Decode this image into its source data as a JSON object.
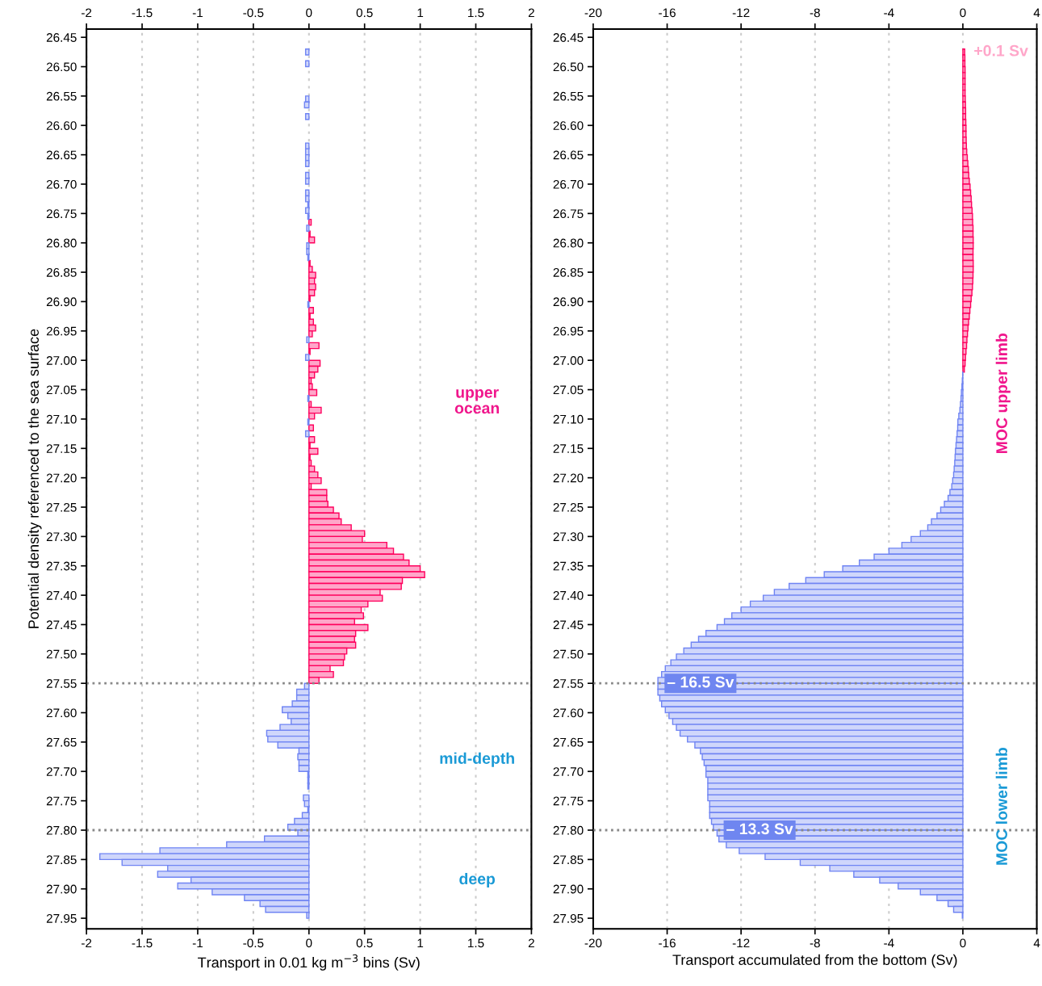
{
  "chart_data": [
    {
      "type": "bar",
      "orientation": "horizontal",
      "xlabel": "Transport in 0.01 kg m$^{−3}$ bins (Sv)",
      "ylabel": "Potential density referenced to the sea surface",
      "x": [
        26.475,
        26.485,
        26.495,
        26.505,
        26.515,
        26.525,
        26.535,
        26.545,
        26.555,
        26.565,
        26.575,
        26.585,
        26.595,
        26.605,
        26.615,
        26.625,
        26.635,
        26.645,
        26.655,
        26.665,
        26.675,
        26.685,
        26.695,
        26.705,
        26.715,
        26.725,
        26.735,
        26.745,
        26.755,
        26.765,
        26.775,
        26.785,
        26.795,
        26.805,
        26.815,
        26.825,
        26.835,
        26.845,
        26.855,
        26.865,
        26.875,
        26.885,
        26.895,
        26.905,
        26.915,
        26.925,
        26.935,
        26.945,
        26.955,
        26.965,
        26.975,
        26.985,
        26.995,
        27.005,
        27.015,
        27.025,
        27.035,
        27.045,
        27.055,
        27.065,
        27.075,
        27.085,
        27.095,
        27.105,
        27.115,
        27.125,
        27.135,
        27.145,
        27.155,
        27.165,
        27.175,
        27.185,
        27.195,
        27.205,
        27.215,
        27.225,
        27.235,
        27.245,
        27.255,
        27.265,
        27.275,
        27.285,
        27.295,
        27.305,
        27.315,
        27.325,
        27.335,
        27.345,
        27.355,
        27.365,
        27.375,
        27.385,
        27.395,
        27.405,
        27.415,
        27.425,
        27.435,
        27.445,
        27.455,
        27.465,
        27.475,
        27.485,
        27.495,
        27.505,
        27.515,
        27.525,
        27.535,
        27.545,
        27.555,
        27.565,
        27.575,
        27.585,
        27.595,
        27.605,
        27.615,
        27.625,
        27.635,
        27.645,
        27.655,
        27.665,
        27.675,
        27.685,
        27.695,
        27.705,
        27.715,
        27.725,
        27.735,
        27.745,
        27.755,
        27.765,
        27.775,
        27.785,
        27.795,
        27.805,
        27.815,
        27.825,
        27.835,
        27.845,
        27.855,
        27.865,
        27.875,
        27.885,
        27.895,
        27.905,
        27.915,
        27.925,
        27.935,
        27.945
      ],
      "series": [
        {
          "color": "#ffa6c9",
          "values": [
            null,
            null,
            null,
            null,
            null,
            null,
            null,
            null,
            null,
            null,
            null,
            null,
            null,
            null,
            null,
            null,
            null,
            null,
            null,
            null,
            null,
            null,
            null,
            null,
            null,
            null,
            null,
            null,
            null,
            0.02,
            null,
            0.01,
            0.05,
            null,
            null,
            null,
            0.01,
            0.03,
            0.06,
            0.05,
            0.06,
            0.05,
            0.01,
            null,
            0.04,
            0.01,
            0.04,
            0.06,
            0.03,
            null,
            0.09,
            0.01,
            null,
            0.1,
            0.08,
            0.05,
            0.02,
            0.03,
            0.07,
            null,
            0.02,
            0.11,
            0.05,
            null,
            0.04,
            null,
            0.05,
            0.01,
            0.08,
            0.01,
            0.02,
            0.05,
            0.08,
            0.11,
            0.02,
            0.16,
            0.16,
            0.17,
            0.22,
            0.27,
            0.29,
            0.38,
            0.5,
            0.48,
            0.7,
            0.76,
            0.85,
            0.9,
            1.0,
            1.04,
            0.84,
            0.83,
            0.64,
            0.66,
            0.53,
            0.47,
            0.49,
            0.41,
            0.53,
            0.42,
            0.41,
            0.42,
            0.34,
            0.32,
            0.31,
            0.19,
            0.22,
            0.09,
            null,
            null,
            null,
            null,
            null,
            null,
            null,
            null,
            null,
            null,
            null,
            null,
            null,
            null,
            null,
            null,
            null,
            null,
            null,
            null,
            null,
            null,
            null,
            null,
            null,
            null,
            null,
            null,
            null,
            null,
            null,
            null,
            null,
            null,
            null,
            null,
            null,
            null,
            null,
            null
          ]
        },
        {
          "color": "#cfd6fb",
          "values": [
            -0.03,
            null,
            -0.03,
            null,
            null,
            null,
            null,
            null,
            -0.03,
            -0.04,
            null,
            -0.03,
            null,
            null,
            null,
            null,
            -0.03,
            -0.03,
            -0.03,
            -0.03,
            null,
            -0.03,
            -0.03,
            null,
            -0.03,
            -0.03,
            -0.01,
            -0.03,
            -0.01,
            null,
            -0.02,
            null,
            null,
            -0.02,
            -0.02,
            -0.01,
            null,
            null,
            null,
            null,
            null,
            null,
            null,
            -0.01,
            null,
            null,
            null,
            null,
            null,
            -0.02,
            null,
            null,
            -0.03,
            null,
            null,
            null,
            null,
            null,
            null,
            -0.01,
            null,
            null,
            null,
            -0.01,
            null,
            -0.03,
            null,
            null,
            null,
            null,
            null,
            null,
            null,
            null,
            null,
            null,
            null,
            null,
            null,
            null,
            null,
            null,
            null,
            null,
            null,
            null,
            null,
            null,
            null,
            null,
            null,
            null,
            null,
            null,
            null,
            null,
            null,
            null,
            null,
            null,
            null,
            null,
            null,
            null,
            null,
            null,
            null,
            null,
            -0.04,
            -0.11,
            -0.11,
            -0.15,
            -0.24,
            -0.19,
            -0.16,
            -0.26,
            -0.38,
            -0.37,
            -0.28,
            -0.09,
            -0.1,
            -0.09,
            -0.09,
            -0.01,
            -0.01,
            -0.01,
            null,
            -0.05,
            -0.04,
            -0.01,
            -0.06,
            -0.13,
            -0.19,
            -0.1,
            -0.4,
            -0.74,
            -1.34,
            -1.88,
            -1.68,
            -1.27,
            -1.36,
            -1.06,
            -1.18,
            -0.87,
            -0.58,
            -0.44,
            -0.39,
            -0.02
          ]
        }
      ],
      "xlim": [
        -2,
        2
      ],
      "xticks": [
        -2,
        -1.5,
        -1,
        -0.5,
        0,
        0.5,
        1,
        1.5,
        2
      ],
      "x2lim": [
        -2,
        2
      ],
      "x2ticks": [
        -2,
        -1.5,
        -1,
        -0.5,
        0,
        0.5,
        1,
        1.5,
        2
      ],
      "ylim": [
        27.968,
        26.436
      ],
      "yticks": [
        {
          "value": 26.45,
          "label": "26.45"
        },
        {
          "value": 26.5,
          "label": "26.50"
        },
        {
          "value": 26.55,
          "label": "26.55"
        },
        {
          "value": 26.6,
          "label": "26.60"
        },
        {
          "value": 26.65,
          "label": "26.65"
        },
        {
          "value": 26.7,
          "label": "26.70"
        },
        {
          "value": 26.75,
          "label": "26.75"
        },
        {
          "value": 26.8,
          "label": "26.80"
        },
        {
          "value": 26.85,
          "label": "26.85"
        },
        {
          "value": 26.9,
          "label": "26.90"
        },
        {
          "value": 26.95,
          "label": "26.95"
        },
        {
          "value": 27.0,
          "label": "27.00"
        },
        {
          "value": 27.05,
          "label": "27.05"
        },
        {
          "value": 27.1,
          "label": "27.10"
        },
        {
          "value": 27.15,
          "label": "27.15"
        },
        {
          "value": 27.2,
          "label": "27.20"
        },
        {
          "value": 27.25,
          "label": "27.25"
        },
        {
          "value": 27.3,
          "label": "27.30"
        },
        {
          "value": 27.35,
          "label": "27.35"
        },
        {
          "value": 27.4,
          "label": "27.40"
        },
        {
          "value": 27.45,
          "label": "27.45"
        },
        {
          "value": 27.5,
          "label": "27.50"
        },
        {
          "value": 27.55,
          "label": "27.55"
        },
        {
          "value": 27.6,
          "label": "27.60"
        },
        {
          "value": 27.65,
          "label": "27.65"
        },
        {
          "value": 27.7,
          "label": "27.70"
        },
        {
          "value": 27.75,
          "label": "27.75"
        },
        {
          "value": 27.8,
          "label": "27.80"
        },
        {
          "value": 27.85,
          "label": "27.85"
        },
        {
          "value": 27.9,
          "label": "27.90"
        },
        {
          "value": 27.95,
          "label": "27.95"
        }
      ],
      "grid": "x",
      "ref_lines": [
        {
          "axis": "y",
          "value": 27.55,
          "color": "#888888",
          "line_style": "dotted"
        },
        {
          "axis": "y",
          "value": 27.8,
          "color": "#888888",
          "line_style": "dotted"
        }
      ],
      "annotations": [
        "upper\nocean",
        "mid-depth",
        "deep"
      ]
    },
    {
      "type": "bar",
      "orientation": "horizontal",
      "xlabel": "Transport accumulated from the bottom (Sv)",
      "x": [
        26.475,
        26.485,
        26.495,
        26.505,
        26.515,
        26.525,
        26.535,
        26.545,
        26.555,
        26.565,
        26.575,
        26.585,
        26.595,
        26.605,
        26.615,
        26.625,
        26.635,
        26.645,
        26.655,
        26.665,
        26.675,
        26.685,
        26.695,
        26.705,
        26.715,
        26.725,
        26.735,
        26.745,
        26.755,
        26.765,
        26.775,
        26.785,
        26.795,
        26.805,
        26.815,
        26.825,
        26.835,
        26.845,
        26.855,
        26.865,
        26.875,
        26.885,
        26.895,
        26.905,
        26.915,
        26.925,
        26.935,
        26.945,
        26.955,
        26.965,
        26.975,
        26.985,
        26.995,
        27.005,
        27.015,
        27.025,
        27.035,
        27.045,
        27.055,
        27.065,
        27.075,
        27.085,
        27.095,
        27.105,
        27.115,
        27.125,
        27.135,
        27.145,
        27.155,
        27.165,
        27.175,
        27.185,
        27.195,
        27.205,
        27.215,
        27.225,
        27.235,
        27.245,
        27.255,
        27.265,
        27.275,
        27.285,
        27.295,
        27.305,
        27.315,
        27.325,
        27.335,
        27.345,
        27.355,
        27.365,
        27.375,
        27.385,
        27.395,
        27.405,
        27.415,
        27.425,
        27.435,
        27.445,
        27.455,
        27.465,
        27.475,
        27.485,
        27.495,
        27.505,
        27.515,
        27.525,
        27.535,
        27.545,
        27.555,
        27.565,
        27.575,
        27.585,
        27.595,
        27.605,
        27.615,
        27.625,
        27.635,
        27.645,
        27.655,
        27.665,
        27.675,
        27.685,
        27.695,
        27.705,
        27.715,
        27.725,
        27.735,
        27.745,
        27.755,
        27.765,
        27.775,
        27.785,
        27.795,
        27.805,
        27.815,
        27.825,
        27.835,
        27.845,
        27.855,
        27.865,
        27.875,
        27.885,
        27.895,
        27.905,
        27.915,
        27.925,
        27.935,
        27.945
      ],
      "series": [
        {
          "color": "#ffa6c9",
          "values": [
            0.1,
            0.11,
            0.11,
            0.12,
            0.12,
            0.12,
            0.12,
            0.12,
            0.13,
            0.14,
            0.15,
            0.15,
            0.16,
            0.17,
            0.17,
            0.18,
            0.19,
            0.21,
            0.24,
            0.27,
            0.3,
            0.32,
            0.35,
            0.39,
            0.42,
            0.45,
            0.47,
            0.5,
            0.52,
            0.53,
            0.55,
            0.55,
            0.56,
            0.56,
            0.55,
            0.55,
            0.56,
            0.56,
            0.55,
            0.54,
            0.52,
            0.49,
            0.45,
            0.42,
            0.38,
            0.35,
            0.31,
            0.28,
            0.25,
            0.22,
            0.2,
            0.17,
            0.14,
            0.12,
            0.08,
            null,
            null,
            null,
            null,
            null,
            null,
            null,
            null,
            null,
            null,
            null,
            null,
            null,
            null,
            null,
            null,
            null,
            null,
            null,
            null,
            null,
            null,
            null,
            null,
            null,
            null,
            null,
            null,
            null,
            null,
            null,
            null,
            null,
            null,
            null,
            null,
            null,
            null,
            null,
            null,
            null,
            null,
            null,
            null,
            null,
            null,
            null,
            null,
            null,
            null,
            null,
            null,
            null,
            null,
            null,
            null,
            null,
            null,
            null,
            null,
            null,
            null,
            null,
            null,
            null,
            null,
            null,
            null,
            null,
            null,
            null,
            null,
            null,
            null,
            null,
            null,
            null,
            null,
            null,
            null,
            null,
            null,
            null,
            null,
            null,
            null,
            null,
            null,
            null,
            null,
            null,
            null,
            null
          ]
        },
        {
          "color": "#cfd6fb",
          "values": [
            null,
            null,
            null,
            null,
            null,
            null,
            null,
            null,
            null,
            null,
            null,
            null,
            null,
            null,
            null,
            null,
            null,
            null,
            null,
            null,
            null,
            null,
            null,
            null,
            null,
            null,
            null,
            null,
            null,
            null,
            null,
            null,
            null,
            null,
            null,
            null,
            null,
            null,
            null,
            null,
            null,
            null,
            null,
            null,
            null,
            null,
            null,
            null,
            null,
            null,
            null,
            null,
            null,
            null,
            null,
            -0.01,
            -0.03,
            -0.05,
            -0.08,
            -0.1,
            -0.13,
            -0.16,
            -0.22,
            -0.27,
            -0.28,
            -0.31,
            -0.34,
            -0.37,
            -0.4,
            -0.42,
            -0.44,
            -0.47,
            -0.5,
            -0.55,
            -0.6,
            -0.7,
            -0.8,
            -1.0,
            -1.2,
            -1.4,
            -1.7,
            -1.9,
            -2.3,
            -2.8,
            -3.3,
            -4.0,
            -4.8,
            -5.6,
            -6.5,
            -7.5,
            -8.5,
            -9.4,
            -10.2,
            -10.8,
            -11.5,
            -12.0,
            -12.5,
            -12.9,
            -13.3,
            -13.9,
            -14.3,
            -14.7,
            -15.1,
            -15.5,
            -15.8,
            -16.1,
            -16.3,
            -16.5,
            -16.5,
            -16.5,
            -16.4,
            -16.3,
            -16.1,
            -15.9,
            -15.7,
            -15.5,
            -15.3,
            -14.9,
            -14.5,
            -14.2,
            -14.1,
            -14.0,
            -13.9,
            -13.9,
            -13.8,
            -13.8,
            -13.8,
            -13.8,
            -13.7,
            -13.7,
            -13.7,
            -13.6,
            -13.5,
            -13.3,
            -13.2,
            -12.8,
            -12.1,
            -10.7,
            -8.8,
            -7.2,
            -5.9,
            -4.5,
            -3.5,
            -2.3,
            -1.4,
            -0.8,
            -0.5,
            -0.03
          ]
        }
      ],
      "xlim": [
        -20,
        4
      ],
      "xticks": [
        -20,
        -16,
        -12,
        -8,
        -4,
        0,
        4
      ],
      "x2lim": [
        -20,
        4
      ],
      "x2ticks": [
        -20,
        -16,
        -12,
        -8,
        -4,
        0,
        4
      ],
      "ylim": [
        27.968,
        26.436
      ],
      "yticks": [
        {
          "value": 26.45,
          "label": "26.45"
        },
        {
          "value": 26.5,
          "label": "26.50"
        },
        {
          "value": 26.55,
          "label": "26.55"
        },
        {
          "value": 26.6,
          "label": "26.60"
        },
        {
          "value": 26.65,
          "label": "26.65"
        },
        {
          "value": 26.7,
          "label": "26.70"
        },
        {
          "value": 26.75,
          "label": "26.75"
        },
        {
          "value": 26.8,
          "label": "26.80"
        },
        {
          "value": 26.85,
          "label": "26.85"
        },
        {
          "value": 26.9,
          "label": "26.90"
        },
        {
          "value": 26.95,
          "label": "26.95"
        },
        {
          "value": 27.0,
          "label": "27.00"
        },
        {
          "value": 27.05,
          "label": "27.05"
        },
        {
          "value": 27.1,
          "label": "27.10"
        },
        {
          "value": 27.15,
          "label": "27.15"
        },
        {
          "value": 27.2,
          "label": "27.20"
        },
        {
          "value": 27.25,
          "label": "27.25"
        },
        {
          "value": 27.3,
          "label": "27.30"
        },
        {
          "value": 27.35,
          "label": "27.35"
        },
        {
          "value": 27.4,
          "label": "27.40"
        },
        {
          "value": 27.45,
          "label": "27.45"
        },
        {
          "value": 27.5,
          "label": "27.50"
        },
        {
          "value": 27.55,
          "label": "27.55"
        },
        {
          "value": 27.6,
          "label": "27.60"
        },
        {
          "value": 27.65,
          "label": "27.65"
        },
        {
          "value": 27.7,
          "label": "27.70"
        },
        {
          "value": 27.75,
          "label": "27.75"
        },
        {
          "value": 27.8,
          "label": "27.80"
        },
        {
          "value": 27.85,
          "label": "27.85"
        },
        {
          "value": 27.9,
          "label": "27.90"
        },
        {
          "value": 27.95,
          "label": "27.95"
        }
      ],
      "grid": "x",
      "ref_lines": [
        {
          "axis": "y",
          "value": 27.55,
          "color": "#888888",
          "line_style": "dotted"
        },
        {
          "axis": "y",
          "value": 27.8,
          "color": "#888888",
          "line_style": "dotted"
        }
      ],
      "annotations": [
        {
          "text": "+0.1 Sv",
          "x": 0.1,
          "y": 26.475
        },
        {
          "text": "– 16.5 Sv",
          "x": -16.5,
          "y": 27.55
        },
        {
          "text": "– 13.3 Sv",
          "x": -13.3,
          "y": 27.8
        },
        "MOC upper limb",
        "MOC lower limb"
      ]
    }
  ]
}
